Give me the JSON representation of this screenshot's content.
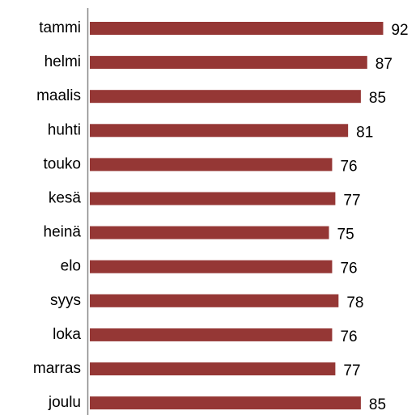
{
  "chart_data": {
    "type": "bar",
    "orientation": "horizontal",
    "categories": [
      "tammi",
      "helmi",
      "maalis",
      "huhti",
      "touko",
      "kesä",
      "heinä",
      "elo",
      "syys",
      "loka",
      "marras",
      "joulu"
    ],
    "values": [
      92,
      87,
      85,
      81,
      76,
      77,
      75,
      76,
      78,
      76,
      77,
      85
    ],
    "color": "#953735",
    "xlim": [
      0,
      100
    ],
    "grid": false
  }
}
